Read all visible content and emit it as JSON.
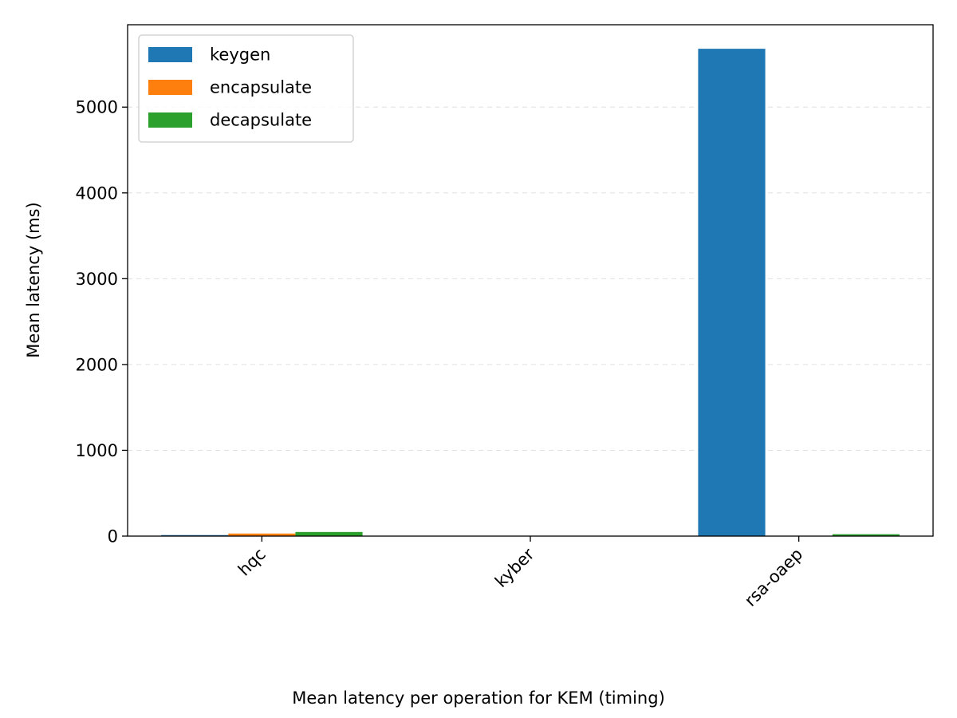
{
  "caption": "Mean latency per operation for KEM (timing)",
  "chart_data": {
    "type": "bar",
    "title": "",
    "xlabel": "",
    "ylabel": "Mean latency (ms)",
    "categories": [
      "hqc",
      "kyber",
      "rsa-oaep"
    ],
    "series": [
      {
        "name": "keygen",
        "color": "#1f77b4",
        "values": [
          12,
          0.1,
          5680
        ]
      },
      {
        "name": "encapsulate",
        "color": "#ff7f0e",
        "values": [
          30,
          0.1,
          1
        ]
      },
      {
        "name": "decapsulate",
        "color": "#2ca02c",
        "values": [
          48,
          0.1,
          22
        ]
      }
    ],
    "ylim": [
      0,
      5960
    ],
    "yticks": [
      0,
      1000,
      2000,
      3000,
      4000,
      5000
    ],
    "grid": {
      "y": true,
      "style": "dashed"
    },
    "legend": "top-left"
  }
}
